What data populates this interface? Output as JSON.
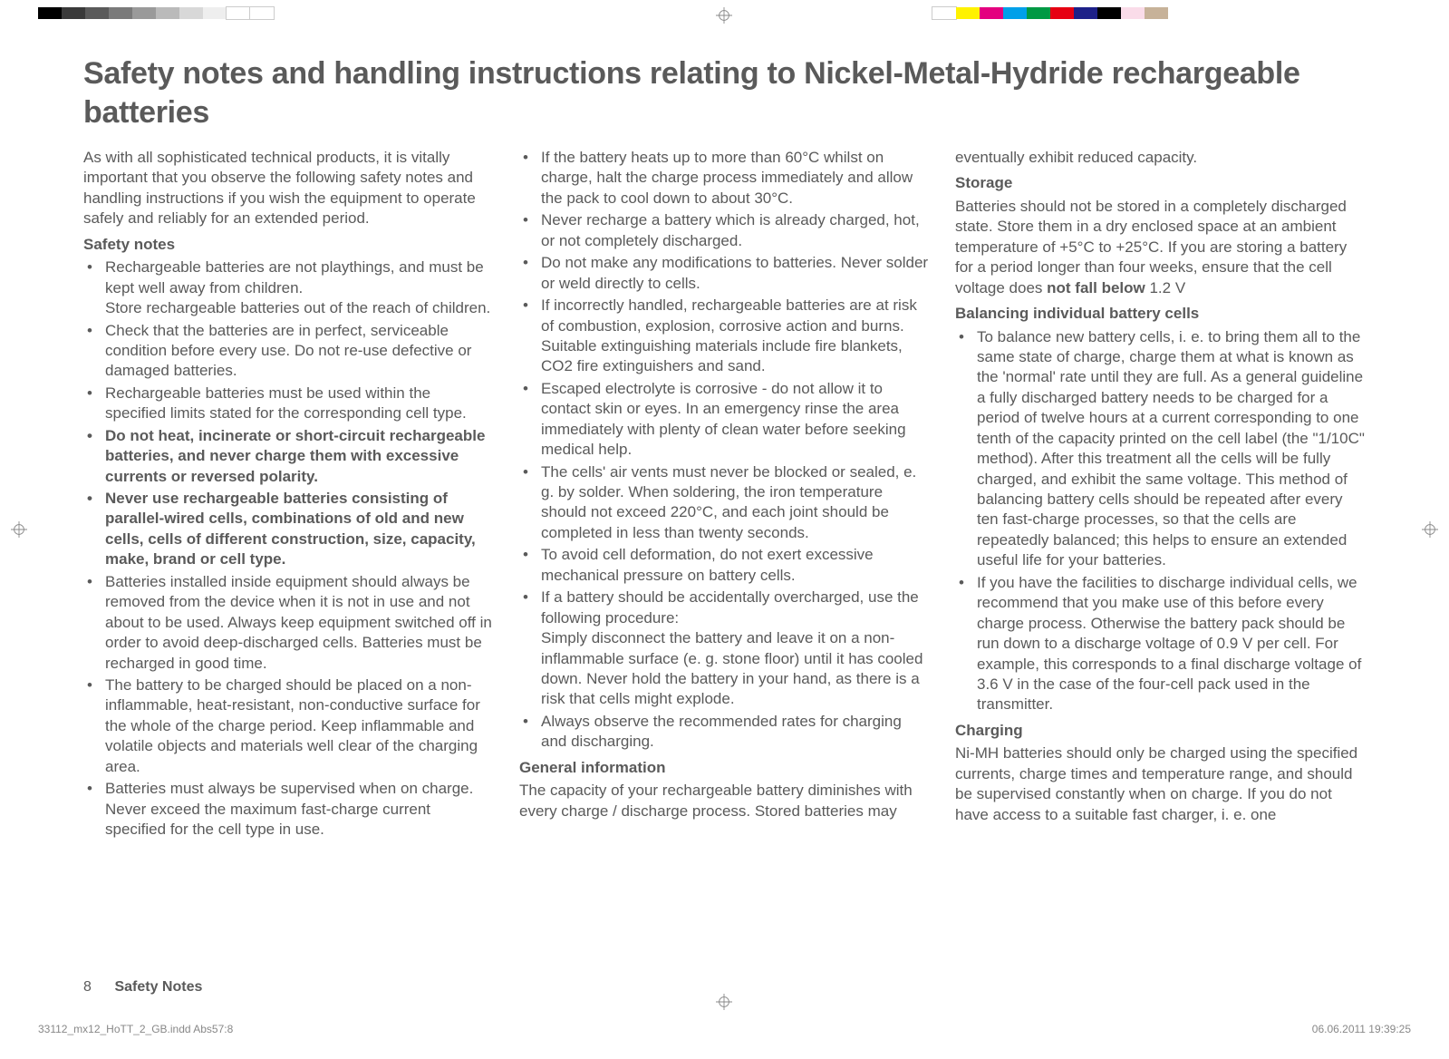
{
  "swatches_left": [
    "#000000",
    "#3a3a3a",
    "#5a5a5a",
    "#7a7a7a",
    "#9a9a9a",
    "#bababa",
    "#d8d8d8",
    "#eeeeee",
    "#ffffff",
    "#ffffff"
  ],
  "swatches_right": [
    "#ffffff",
    "#fff200",
    "#e4007f",
    "#00a0e9",
    "#009944",
    "#e60012",
    "#1d2088",
    "#000000",
    "#fadce9",
    "#c7b299"
  ],
  "title": "Safety notes and handling instructions relating to Nickel-Metal-Hydride rechargeable batteries",
  "intro": "As with all sophisticated technical products, it is vitally important that you observe the following safety notes and handling instructions if you wish the equipment to operate safely and reliably for an extended period.",
  "safety_notes_heading": "Safety notes",
  "sn_1a": "Rechargeable batteries are not playthings, and must be kept well away from children.",
  "sn_1b": "Store rechargeable batteries out of the reach of children.",
  "sn_2": "Check that the batteries are in perfect, serviceable condition before every use. Do not re-use defective or damaged batteries.",
  "sn_3": "Rechargeable batteries must be used within the specified limits stated for the corresponding cell type.",
  "sn_4": "Do not heat, incinerate or short-circuit rechargeable batteries, and never charge them with excessive currents or reversed polarity.",
  "sn_5": "Never use rechargeable batteries consisting of parallel-wired cells, combinations of old and new cells, cells of different construction, size, capacity, make, brand or cell type.",
  "sn_6": "Batteries installed inside equipment should always be removed from the device when it is not in use and not about to be used. Always keep equipment switched off in order to avoid deep-discharged cells. Batteries must be recharged in good time.",
  "sn_7": "The battery to be charged should be placed on a non-inflammable, heat-resistant, non-conductive surface for the whole of the charge period. Keep inflammable and volatile objects and materials well clear of the charging area.",
  "sn_8": "Batteries must always be supervised when on charge. Never exceed the maximum fast-charge current specified for the cell type in use.",
  "sn_9": "If the battery heats up to more than 60°C whilst on charge, halt the charge process immediately and allow the pack to cool down to about 30°C.",
  "sn_10": "Never recharge a battery which is already charged, hot, or not completely discharged.",
  "sn_11": "Do not make any modifications to batteries. Never solder or weld directly to cells.",
  "sn_12": "If incorrectly handled, rechargeable batteries are at risk of combustion, explosion, corrosive action and burns. Suitable extinguishing materials include fire blankets, CO2 fire extinguishers and sand.",
  "sn_13": "Escaped electrolyte is corrosive - do not allow it to contact skin or eyes. In an emergency rinse the area immediately with plenty of clean water before seeking medical help.",
  "sn_14": "The cells' air vents must never be blocked or sealed, e. g. by solder. When soldering, the iron temperature should not exceed 220°C, and each joint should be completed in less than twenty seconds.",
  "sn_15": "To avoid cell deformation, do not exert excessive mechanical pressure on battery cells.",
  "sn_16a": "If a battery should be accidentally overcharged, use the following procedure:",
  "sn_16b": "Simply disconnect the battery and leave it on a non-inflammable surface (e. g. stone floor) until it has cooled down. Never hold the battery in your hand, as there is a risk that cells might explode.",
  "sn_17": "Always observe the recommended rates for charging and discharging.",
  "gen_heading": "General information",
  "gen_text": "The capacity of your rechargeable battery diminishes with every charge / discharge process. Stored batteries may eventually exhibit reduced capacity.",
  "storage_heading": "Storage",
  "storage_text_a": "Batteries should not be stored in a completely discharged state. Store them in a dry enclosed space at an ambient temperature of +5°C to +25°C. If you are storing a battery for a period longer than four weeks, ensure that the cell voltage does ",
  "storage_text_bold": "not fall below",
  "storage_text_b": " 1.2 V",
  "balance_heading": "Balancing individual battery cells",
  "bal_1": "To balance new battery cells, i. e. to bring them all to the same state of charge, charge them at what is known as the 'normal' rate until they are full. As a general guideline a fully discharged battery needs to be charged for a period of twelve hours at a current corresponding to one tenth of the capacity printed on the cell label (the \"1/10C\" method). After this treatment all the cells will be fully charged, and exhibit the same voltage. This method of balancing battery cells should be repeated after every ten fast-charge processes, so that the cells are repeatedly balanced; this helps to ensure an extended useful life for your batteries.",
  "bal_2": "If you have the facilities to discharge individual cells, we recommend that you make use of this before every charge process. Otherwise the battery pack should be run down to a discharge voltage of 0.9 V per cell. For example, this corresponds to a final discharge voltage of 3.6 V in the case of the four-cell pack used in the transmitter.",
  "charging_heading": "Charging",
  "charging_text": "Ni-MH batteries should only be charged using the specified currents, charge times and temperature range, and should be supervised constantly when on charge. If you do not have access to a suitable fast charger, i. e. one",
  "page_number": "8",
  "footer_label": "Safety Notes",
  "meta_left": "33112_mx12_HoTT_2_GB.indd   Abs57:8",
  "meta_right": "06.06.2011   19:39:25"
}
